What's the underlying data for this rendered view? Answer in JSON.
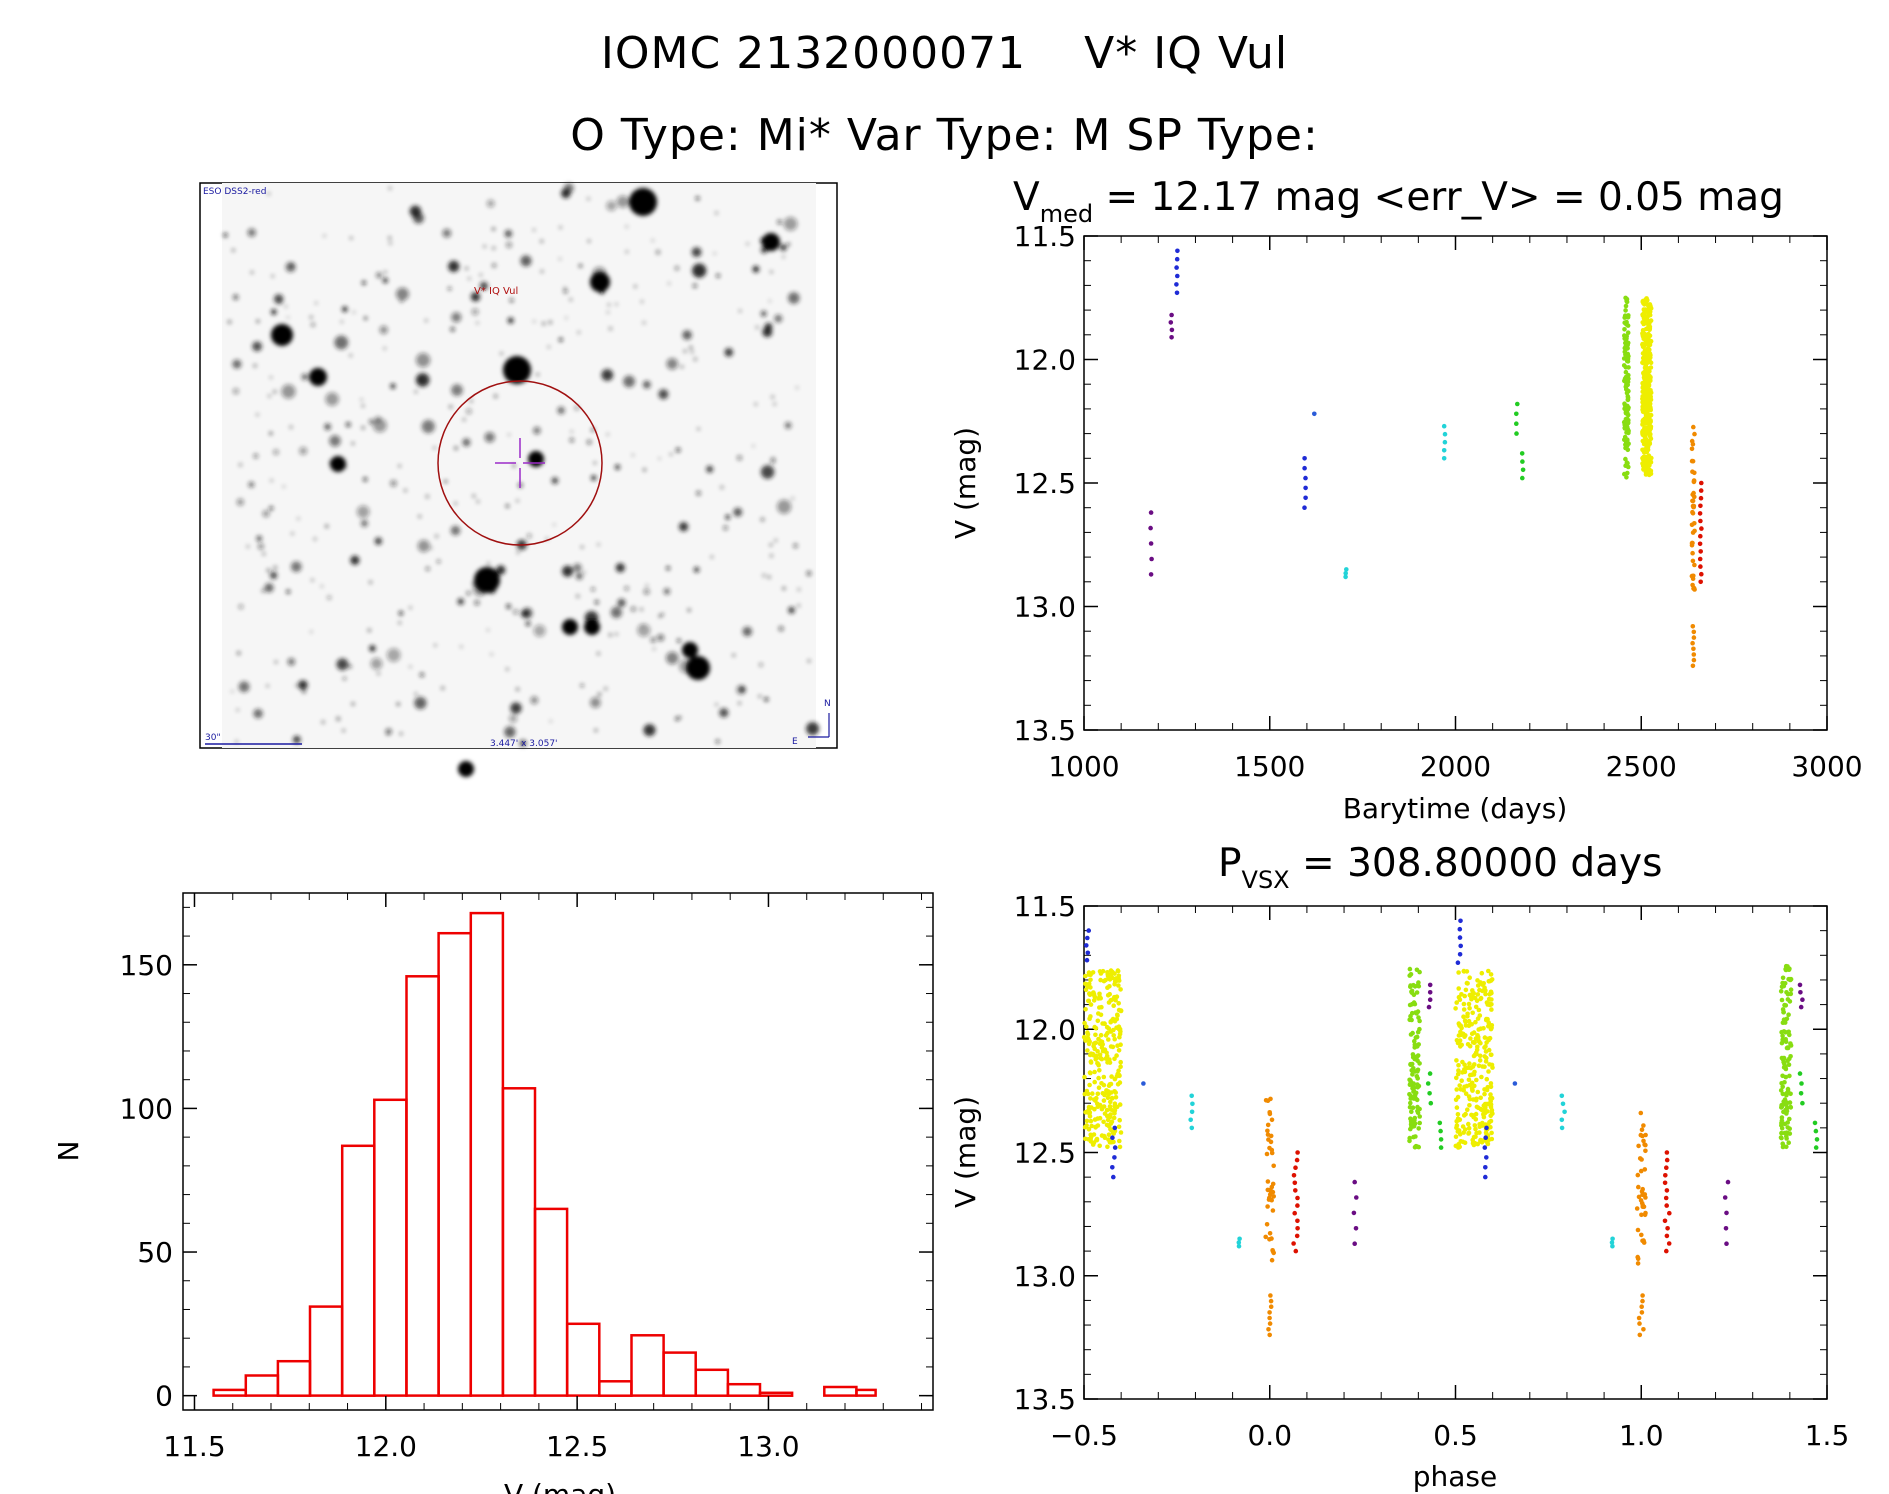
{
  "header": {
    "line1_id": "IOMC 2132000071",
    "line1_name": "V* IQ Vul",
    "line2": "O Type: Mi*  Var Type: M  SP Type:"
  },
  "finder": {
    "survey": "ESO DSS2-red",
    "label": "V* IQ Vul",
    "scale_label": "30\"",
    "fov_label": "3.447' x 3.057'",
    "north": "N",
    "east": "E"
  },
  "colors": {
    "histogram": "#ee0000",
    "purple": "#6a0d83",
    "blue": "#1f2bd6",
    "deepblue": "#2a5bd8",
    "cyan": "#22d3d8",
    "green": "#22cc22",
    "lime": "#88dd11",
    "yellow": "#eeee00",
    "orange": "#f08a00",
    "red": "#dd1100"
  },
  "chart_data": [
    {
      "id": "lightcurve",
      "type": "scatter",
      "title_main": "V",
      "title_sub": "med",
      "title_rest": " = 12.17 mag <err_V> = 0.05 mag",
      "xlabel": "Barytime (days)",
      "ylabel": "V (mag)",
      "xlim": [
        1000,
        3000
      ],
      "ylim": [
        13.5,
        11.5
      ],
      "xticks": [
        "1000",
        "1500",
        "2000",
        "2500",
        "3000"
      ],
      "xtick_values": [
        1000,
        1500,
        2000,
        2500,
        3000
      ],
      "yticks": [
        "11.5",
        "12.0",
        "12.5",
        "13.0",
        "13.5"
      ],
      "ytick_values": [
        11.5,
        12.0,
        12.5,
        13.0,
        13.5
      ],
      "clusters": [
        {
          "x": 1180,
          "ymin": 12.62,
          "ymax": 12.87,
          "n": 5,
          "color": "purple",
          "spread": 2
        },
        {
          "x": 1235,
          "ymin": 11.82,
          "ymax": 11.91,
          "n": 4,
          "color": "purple",
          "spread": 2
        },
        {
          "x": 1250,
          "ymin": 11.56,
          "ymax": 11.73,
          "n": 6,
          "color": "blue",
          "spread": 2
        },
        {
          "x": 1595,
          "ymin": 12.4,
          "ymax": 12.6,
          "n": 6,
          "color": "blue",
          "spread": 2
        },
        {
          "x": 1620,
          "ymin": 12.22,
          "ymax": 12.22,
          "n": 1,
          "color": "deepblue",
          "spread": 0
        },
        {
          "x": 1705,
          "ymin": 12.85,
          "ymax": 12.88,
          "n": 3,
          "color": "cyan",
          "spread": 2
        },
        {
          "x": 1970,
          "ymin": 12.27,
          "ymax": 12.4,
          "n": 5,
          "color": "cyan",
          "spread": 2
        },
        {
          "x": 2165,
          "ymin": 12.18,
          "ymax": 12.3,
          "n": 4,
          "color": "green",
          "spread": 2
        },
        {
          "x": 2180,
          "ymin": 12.38,
          "ymax": 12.48,
          "n": 4,
          "color": "green",
          "spread": 2
        },
        {
          "x": 2460,
          "ymin": 11.74,
          "ymax": 12.48,
          "n": 120,
          "color": "lime",
          "spread": 6
        },
        {
          "x": 2515,
          "ymin": 11.75,
          "ymax": 12.47,
          "n": 380,
          "color": "yellow",
          "spread": 12
        },
        {
          "x": 2640,
          "ymin": 12.27,
          "ymax": 12.95,
          "n": 40,
          "color": "orange",
          "spread": 4
        },
        {
          "x": 2640,
          "ymin": 13.08,
          "ymax": 13.24,
          "n": 8,
          "color": "orange",
          "spread": 2
        },
        {
          "x": 2660,
          "ymin": 12.5,
          "ymax": 12.9,
          "n": 14,
          "color": "red",
          "spread": 2
        }
      ]
    },
    {
      "id": "phase",
      "type": "scatter",
      "title_main": "P",
      "title_sub": "VSX",
      "title_rest": " = 308.80000 days",
      "xlabel": "phase",
      "ylabel": "V (mag)",
      "xlim": [
        -0.5,
        1.5
      ],
      "ylim": [
        13.5,
        11.5
      ],
      "xticks": [
        "−0.5",
        "0.0",
        "0.5",
        "1.0",
        "1.5"
      ],
      "xtick_values": [
        -0.5,
        0.0,
        0.5,
        1.0,
        1.5
      ],
      "yticks": [
        "11.5",
        "12.0",
        "12.5",
        "13.0",
        "13.5"
      ],
      "ytick_values": [
        11.5,
        12.0,
        12.5,
        13.0,
        13.5
      ],
      "clusters": [
        {
          "x": -0.49,
          "ymin": 11.6,
          "ymax": 11.72,
          "n": 5,
          "color": "blue",
          "spread": 0.004
        },
        {
          "x": -0.45,
          "ymin": 11.76,
          "ymax": 12.48,
          "n": 300,
          "color": "yellow",
          "spread": 0.05
        },
        {
          "x": -0.42,
          "ymin": 12.4,
          "ymax": 12.6,
          "n": 6,
          "color": "blue",
          "spread": 0.004
        },
        {
          "x": -0.34,
          "ymin": 12.22,
          "ymax": 12.22,
          "n": 1,
          "color": "deepblue",
          "spread": 0
        },
        {
          "x": -0.21,
          "ymin": 12.27,
          "ymax": 12.4,
          "n": 5,
          "color": "cyan",
          "spread": 0.004
        },
        {
          "x": -0.08,
          "ymin": 12.85,
          "ymax": 12.88,
          "n": 3,
          "color": "cyan",
          "spread": 0.004
        },
        {
          "x": 0.0,
          "ymin": 12.27,
          "ymax": 12.95,
          "n": 40,
          "color": "orange",
          "spread": 0.012
        },
        {
          "x": 0.0,
          "ymin": 13.08,
          "ymax": 13.24,
          "n": 8,
          "color": "orange",
          "spread": 0.006
        },
        {
          "x": 0.07,
          "ymin": 12.5,
          "ymax": 12.9,
          "n": 14,
          "color": "red",
          "spread": 0.006
        },
        {
          "x": 0.23,
          "ymin": 12.62,
          "ymax": 12.87,
          "n": 5,
          "color": "purple",
          "spread": 0.004
        },
        {
          "x": 0.39,
          "ymin": 11.74,
          "ymax": 12.48,
          "n": 120,
          "color": "lime",
          "spread": 0.014
        },
        {
          "x": 0.43,
          "ymin": 11.82,
          "ymax": 11.91,
          "n": 4,
          "color": "purple",
          "spread": 0.004
        },
        {
          "x": 0.43,
          "ymin": 12.18,
          "ymax": 12.3,
          "n": 4,
          "color": "green",
          "spread": 0.004
        },
        {
          "x": 0.46,
          "ymin": 12.38,
          "ymax": 12.48,
          "n": 4,
          "color": "green",
          "spread": 0.004
        },
        {
          "x": 0.51,
          "ymin": 11.56,
          "ymax": 11.73,
          "n": 6,
          "color": "blue",
          "spread": 0.004
        },
        {
          "x": 0.55,
          "ymin": 11.76,
          "ymax": 12.48,
          "n": 300,
          "color": "yellow",
          "spread": 0.05
        },
        {
          "x": 0.58,
          "ymin": 12.4,
          "ymax": 12.6,
          "n": 6,
          "color": "blue",
          "spread": 0.004
        },
        {
          "x": 0.66,
          "ymin": 12.22,
          "ymax": 12.22,
          "n": 1,
          "color": "deepblue",
          "spread": 0
        },
        {
          "x": 0.79,
          "ymin": 12.27,
          "ymax": 12.4,
          "n": 5,
          "color": "cyan",
          "spread": 0.004
        },
        {
          "x": 0.92,
          "ymin": 12.85,
          "ymax": 12.88,
          "n": 3,
          "color": "cyan",
          "spread": 0.004
        },
        {
          "x": 1.0,
          "ymin": 12.27,
          "ymax": 12.95,
          "n": 40,
          "color": "orange",
          "spread": 0.012
        },
        {
          "x": 1.0,
          "ymin": 13.08,
          "ymax": 13.24,
          "n": 8,
          "color": "orange",
          "spread": 0.006
        },
        {
          "x": 1.07,
          "ymin": 12.5,
          "ymax": 12.9,
          "n": 14,
          "color": "red",
          "spread": 0.006
        },
        {
          "x": 1.23,
          "ymin": 12.62,
          "ymax": 12.87,
          "n": 5,
          "color": "purple",
          "spread": 0.004
        },
        {
          "x": 1.39,
          "ymin": 11.74,
          "ymax": 12.48,
          "n": 120,
          "color": "lime",
          "spread": 0.014
        },
        {
          "x": 1.43,
          "ymin": 11.82,
          "ymax": 11.91,
          "n": 4,
          "color": "purple",
          "spread": 0.004
        },
        {
          "x": 1.43,
          "ymin": 12.18,
          "ymax": 12.3,
          "n": 4,
          "color": "green",
          "spread": 0.004
        },
        {
          "x": 1.47,
          "ymin": 12.38,
          "ymax": 12.48,
          "n": 4,
          "color": "green",
          "spread": 0.004
        }
      ]
    },
    {
      "id": "histogram",
      "type": "bar",
      "xlabel": "V (mag)",
      "ylabel": "N",
      "xlim": [
        11.47,
        13.43
      ],
      "ylim": [
        -5,
        175
      ],
      "xticks": [
        "11.5",
        "12.0",
        "12.5",
        "13.0"
      ],
      "xtick_values": [
        11.5,
        12.0,
        12.5,
        13.0
      ],
      "yticks": [
        "0",
        "50",
        "100",
        "150"
      ],
      "ytick_values": [
        0,
        50,
        100,
        150
      ],
      "bin_edges": [
        11.55,
        11.634,
        11.718,
        11.802,
        11.886,
        11.97,
        12.054,
        12.138,
        12.222,
        12.306,
        12.39,
        12.474,
        12.558,
        12.642,
        12.726,
        12.81,
        12.894,
        12.978,
        13.062,
        13.146,
        13.23
      ],
      "bin_edges_last": 13.28,
      "counts": [
        2,
        7,
        12,
        31,
        87,
        103,
        146,
        161,
        168,
        107,
        65,
        25,
        5,
        21,
        15,
        9,
        4,
        1,
        0,
        3,
        2
      ],
      "edge_list": [
        11.55,
        11.634,
        11.718,
        11.802,
        11.886,
        11.97,
        12.054,
        12.138,
        12.222,
        12.306,
        12.39,
        12.474,
        12.558,
        12.642,
        12.726,
        12.81,
        12.894,
        12.978,
        13.062,
        13.146,
        13.23,
        13.28
      ]
    }
  ]
}
